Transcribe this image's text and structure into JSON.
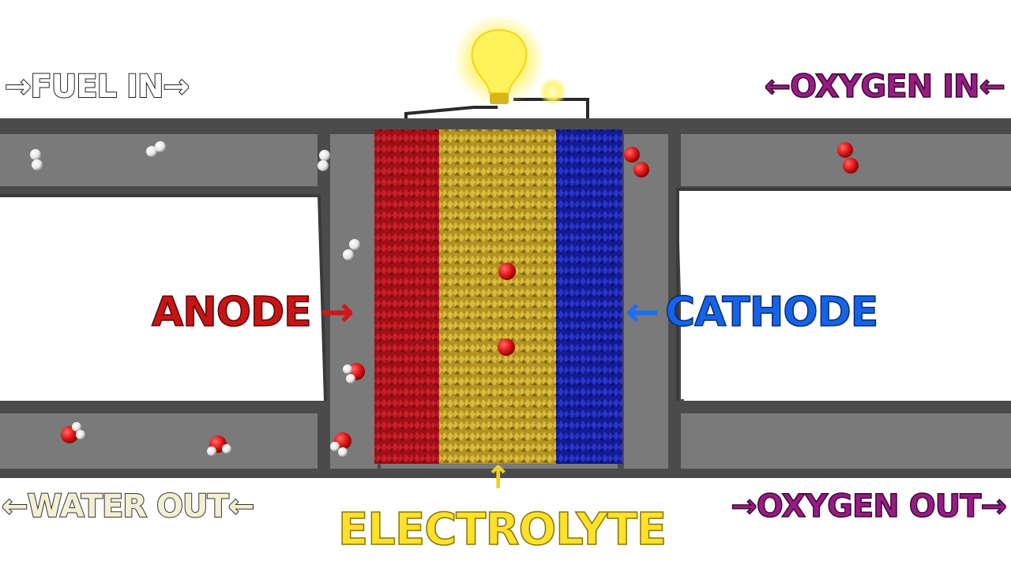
{
  "labels": {
    "fuel_in": "→FUEL IN→",
    "oxygen_in": "←OXYGEN IN←",
    "anode": "ANODE",
    "cathode": "CATHODE",
    "water_out": "←WATER OUT←",
    "oxygen_out": "→OXYGEN OUT→",
    "electrolyte": "ELECTROLYTE"
  },
  "arrows": {
    "anode_arrow": "→",
    "cathode_arrow": "←",
    "electrolyte_arrow": "↑"
  },
  "colors": {
    "anode": "#b3141c",
    "electrolyte": "#c9a92a",
    "cathode": "#1a1fa8",
    "frame": "#4d4d4d",
    "channel": "#777777",
    "bulb": "#fff25a",
    "oxygen_label": "#9a1a86",
    "cathode_label": "#1663e6",
    "anode_label": "#c81414",
    "electrolyte_label": "#ffe12a"
  }
}
